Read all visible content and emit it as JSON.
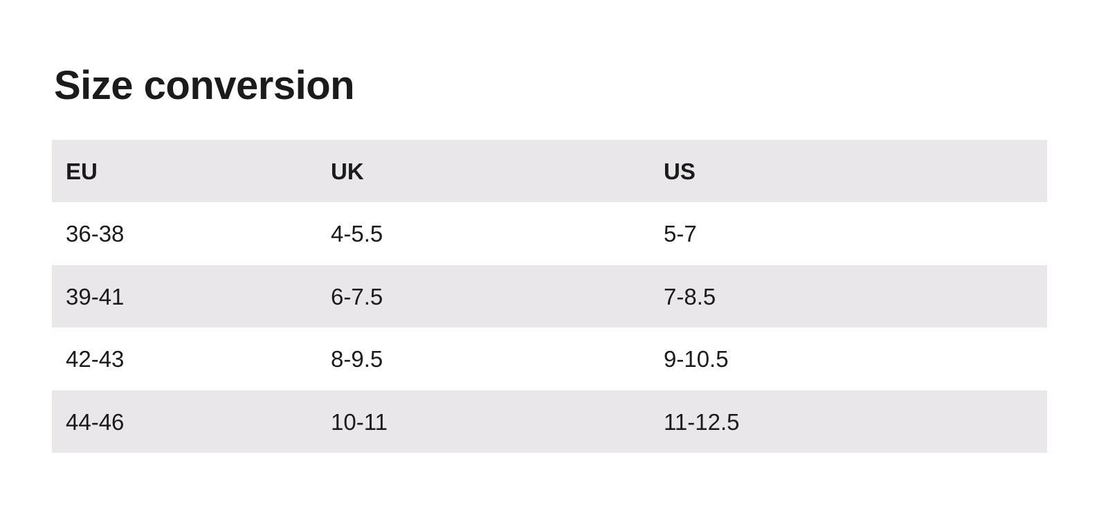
{
  "page": {
    "title": "Size conversion"
  },
  "table": {
    "headers": [
      "EU",
      "UK",
      "US"
    ],
    "rows": [
      [
        "36-38",
        "4-5.5",
        "5-7"
      ],
      [
        "39-41",
        "6-7.5",
        "7-8.5"
      ],
      [
        "42-43",
        "8-9.5",
        "9-10.5"
      ],
      [
        "44-46",
        "10-11",
        "11-12.5"
      ]
    ],
    "colors": {
      "band_bg": "#e9e7e9",
      "text": "#1b1b1b",
      "page_bg": "#ffffff"
    }
  }
}
